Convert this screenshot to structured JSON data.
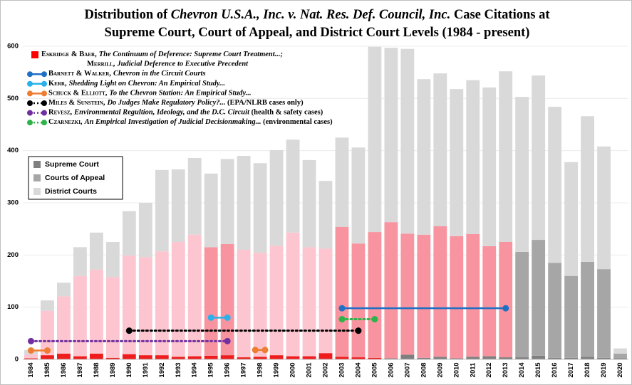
{
  "chart_data": {
    "type": "stacked_bar",
    "title": [
      "Distribution of ",
      "Chevron U.S.A., Inc. v. Nat. Res. Def. Council, Inc.",
      " Case Citations at",
      "Supreme Court, Court of Appeal, and District Court Levels (1984 - present)"
    ],
    "categories": [
      "1984",
      "1985",
      "1986",
      "1987",
      "1988",
      "1989",
      "1990",
      "1991",
      "1992",
      "1993",
      "1994",
      "1995",
      "1996",
      "1997",
      "1998",
      "1999",
      "2000",
      "2001",
      "2002",
      "2003",
      "2004",
      "2005",
      "2006",
      "2007",
      "2008",
      "2009",
      "2010",
      "2011",
      "2012",
      "2013",
      "2014",
      "2015",
      "2016",
      "2017",
      "2018",
      "2019",
      "2020"
    ],
    "series": [
      {
        "name": "Supreme Court",
        "color": "#7f7f7f",
        "values": [
          2,
          8,
          11,
          6,
          11,
          3,
          10,
          8,
          8,
          5,
          6,
          7,
          8,
          4,
          5,
          8,
          6,
          6,
          12,
          5,
          4,
          3,
          2,
          9,
          3,
          5,
          2,
          5,
          6,
          4,
          4,
          7,
          3,
          3,
          5,
          3,
          2
        ],
        "colors": [
          "#ee1c1c",
          "#ee1c1c",
          "#ee1c1c",
          "#ee1c1c",
          "#ee1c1c",
          "#ee1c1c",
          "#ee1c1c",
          "#ee1c1c",
          "#ee1c1c",
          "#ee1c1c",
          "#ee1c1c",
          "#ee1c1c",
          "#ee1c1c",
          "#ee1c1c",
          "#ee1c1c",
          "#ee1c1c",
          "#ee1c1c",
          "#ee1c1c",
          "#ee1c1c",
          "#ee1c1c",
          "#ee1c1c",
          "#ee1c1c",
          "#7f7f7f",
          "#7f7f7f",
          "#7f7f7f",
          "#7f7f7f",
          "#7f7f7f",
          "#7f7f7f",
          "#7f7f7f",
          "#7f7f7f",
          "#7f7f7f",
          "#7f7f7f",
          "#7f7f7f",
          "#7f7f7f",
          "#7f7f7f",
          "#7f7f7f",
          "#7f7f7f"
        ]
      },
      {
        "name": "Courts of Appeal",
        "color": "#a6a6a6",
        "values": [
          8,
          85,
          110,
          154,
          161,
          155,
          189,
          188,
          199,
          220,
          233,
          208,
          213,
          206,
          199,
          210,
          237,
          209,
          200,
          249,
          218,
          241,
          261,
          232,
          236,
          250,
          234,
          235,
          211,
          221,
          202,
          222,
          182,
          157,
          182,
          170,
          9
        ],
        "colors": [
          "#fcc5cf",
          "#fcc5cf",
          "#fcc5cf",
          "#fcc5cf",
          "#fcc5cf",
          "#fcc5cf",
          "#fcc5cf",
          "#fcc5cf",
          "#fcc5cf",
          "#fcc5cf",
          "#fcc5cf",
          "#f8949f",
          "#f8949f",
          "#fcc5cf",
          "#fcc5cf",
          "#fcc5cf",
          "#fcc5cf",
          "#fcc5cf",
          "#fcc5cf",
          "#f8949f",
          "#f8949f",
          "#f8949f",
          "#f8949f",
          "#f8949f",
          "#f8949f",
          "#f8949f",
          "#f8949f",
          "#f8949f",
          "#f8949f",
          "#f8949f",
          "#a6a6a6",
          "#a6a6a6",
          "#a6a6a6",
          "#a6a6a6",
          "#a6a6a6",
          "#a6a6a6",
          "#a6a6a6"
        ]
      },
      {
        "name": "District Courts",
        "color": "#d9d9d9",
        "values": [
          8,
          20,
          26,
          55,
          71,
          67,
          85,
          104,
          156,
          139,
          147,
          141,
          163,
          180,
          172,
          183,
          178,
          167,
          130,
          171,
          184,
          355,
          334,
          354,
          298,
          293,
          282,
          295,
          304,
          327,
          297,
          315,
          299,
          218,
          279,
          235,
          10
        ]
      }
    ],
    "studies": [
      {
        "color": "#ff0000",
        "marker": "square",
        "lines": [
          {
            "authors": "Eskridge & Baer,",
            "title": "The Continuum of Deference: Supreme Court Treatment...;"
          },
          {
            "authors": "Merrill,",
            "title": "Judicial Deference to Executive Precedent"
          }
        ],
        "segments": []
      },
      {
        "color": "#1f6fc5",
        "style": "solid",
        "lines": [
          {
            "authors": "Barnett & Walker,",
            "title": "Chevron in the Circuit Courts"
          }
        ],
        "segments": [
          {
            "x": [
              2003,
              2013
            ],
            "y": 98
          }
        ]
      },
      {
        "color": "#2ab0ea",
        "style": "solid",
        "lines": [
          {
            "authors": "Kerr,",
            "title": "Shedding Light on Chevron: An Empirical Study..."
          }
        ],
        "segments": [
          {
            "x": [
              1995,
              1996
            ],
            "y": 80
          }
        ]
      },
      {
        "color": "#ee7d31",
        "style": "solid",
        "lines": [
          {
            "authors": "Schuck & Elliott,",
            "title": "To the Chevron Station: An Empirical Study..."
          }
        ],
        "segments": [
          {
            "x": [
              1984,
              1985
            ],
            "y": 17
          },
          {
            "x": [
              1998,
              1998
            ],
            "y": 18
          }
        ]
      },
      {
        "color": "#000000",
        "style": "dotted",
        "lines": [
          {
            "authors": "Miles & Sunstein,",
            "title": "Do Judges Make Regulatory Policy?...",
            "note": " (EPA/NLRB cases only)"
          }
        ],
        "segments": [
          {
            "x": [
              1990,
              2004
            ],
            "y": 55
          }
        ]
      },
      {
        "color": "#7030a0",
        "style": "dotted",
        "lines": [
          {
            "authors": "Revesz,",
            "title": "Environmental Regultion, Ideology, and the D.C. Circuit",
            "note": " (health & safety cases)"
          }
        ],
        "segments": [
          {
            "x": [
              1984,
              1996
            ],
            "y": 35
          }
        ]
      },
      {
        "color": "#2db34a",
        "style": "dotted",
        "lines": [
          {
            "authors": "Czarnezki,",
            "title": "An Empirical Investigation of Judicial Decisionmaking...",
            "note": " (environmental cases)"
          }
        ],
        "segments": [
          {
            "x": [
              2003,
              2005
            ],
            "y": 77
          }
        ]
      }
    ],
    "ylim": [
      0,
      600
    ],
    "yticks": [
      0,
      100,
      200,
      300,
      400,
      500,
      600
    ],
    "grid": true
  }
}
